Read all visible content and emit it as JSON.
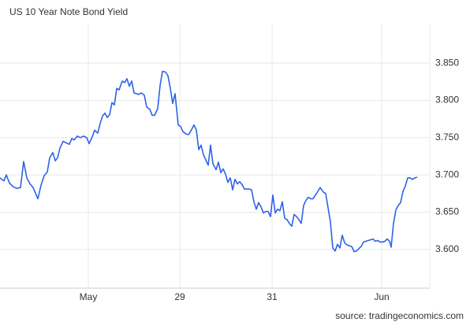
{
  "chart_data": {
    "type": "line",
    "title": "US 10 Year Note Bond Yield",
    "source": "source: tradingeconomics.com",
    "series": [
      {
        "name": "US 10 Year Note Bond Yield",
        "color": "#2f62e8",
        "x": [
          0,
          5,
          8,
          12,
          17,
          21,
          26,
          30,
          34,
          38,
          42,
          48,
          52,
          56,
          60,
          63,
          67,
          70,
          73,
          76,
          80,
          84,
          88,
          91,
          94,
          98,
          102,
          106,
          110,
          113,
          117,
          120,
          124,
          127,
          130,
          133,
          136,
          139,
          142,
          145,
          148,
          151,
          155,
          158,
          161,
          164,
          167,
          170,
          173,
          176,
          179,
          183,
          186,
          190,
          193,
          196,
          200,
          203,
          206,
          210,
          213,
          216,
          219,
          222,
          226,
          229,
          232,
          236,
          239,
          242,
          246,
          249,
          252,
          255,
          258,
          261,
          264,
          267,
          270,
          274,
          277,
          280,
          283,
          286,
          289,
          292,
          295,
          298,
          301,
          304,
          307,
          310,
          313,
          316,
          319,
          322,
          325,
          328,
          331,
          334,
          337,
          340,
          343,
          346,
          349,
          352,
          355,
          358,
          361,
          364,
          367,
          370,
          373,
          376,
          379,
          382,
          385,
          388,
          391,
          394,
          397,
          400,
          403,
          406,
          410,
          413,
          416,
          419,
          422,
          425,
          428,
          431,
          434,
          437,
          440,
          443,
          446,
          449,
          452,
          455,
          458,
          461,
          464,
          467,
          470,
          473,
          476,
          479,
          482,
          485,
          488,
          491,
          494,
          496,
          499,
          502,
          505,
          508,
          511,
          514,
          517,
          520,
          523,
          526,
          529
        ],
        "values": [
          3.696,
          3.692,
          3.7,
          3.689,
          3.684,
          3.682,
          3.683,
          3.718,
          3.696,
          3.688,
          3.683,
          3.668,
          3.686,
          3.699,
          3.704,
          3.723,
          3.73,
          3.719,
          3.723,
          3.736,
          3.745,
          3.743,
          3.741,
          3.749,
          3.747,
          3.752,
          3.75,
          3.752,
          3.75,
          3.742,
          3.751,
          3.76,
          3.756,
          3.769,
          3.779,
          3.783,
          3.777,
          3.781,
          3.797,
          3.794,
          3.816,
          3.814,
          3.826,
          3.824,
          3.829,
          3.819,
          3.826,
          3.81,
          3.809,
          3.808,
          3.81,
          3.807,
          3.791,
          3.788,
          3.78,
          3.78,
          3.789,
          3.82,
          3.839,
          3.838,
          3.833,
          3.816,
          3.796,
          3.809,
          3.767,
          3.765,
          3.758,
          3.755,
          3.754,
          3.759,
          3.767,
          3.76,
          3.734,
          3.74,
          3.727,
          3.72,
          3.713,
          3.74,
          3.715,
          3.707,
          3.717,
          3.703,
          3.708,
          3.701,
          3.69,
          3.696,
          3.68,
          3.694,
          3.688,
          3.691,
          3.687,
          3.681,
          3.681,
          3.681,
          3.68,
          3.664,
          3.654,
          3.663,
          3.657,
          3.649,
          3.651,
          3.651,
          3.644,
          3.673,
          3.649,
          3.654,
          3.652,
          3.664,
          3.642,
          3.64,
          3.635,
          3.631,
          3.647,
          3.644,
          3.64,
          3.635,
          3.659,
          3.666,
          3.67,
          3.668,
          3.668,
          3.673,
          3.678,
          3.683,
          3.677,
          3.675,
          3.656,
          3.637,
          3.602,
          3.598,
          3.607,
          3.602,
          3.619,
          3.609,
          3.606,
          3.605,
          3.604,
          3.597,
          3.598,
          3.601,
          3.604,
          3.61,
          3.611,
          3.612,
          3.613,
          3.614,
          3.611,
          3.612,
          3.61,
          3.61,
          3.611,
          3.614,
          3.611,
          3.603,
          3.635,
          3.653,
          3.659,
          3.663,
          3.678,
          3.685,
          3.696,
          3.696,
          3.694,
          3.696,
          3.697
        ]
      }
    ],
    "xlim": [
      0,
      545
    ],
    "xticks": [
      {
        "value": 112,
        "label": "May"
      },
      {
        "value": 228,
        "label": "29"
      },
      {
        "value": 345,
        "label": "31"
      },
      {
        "value": 484,
        "label": "Jun"
      }
    ],
    "ylim": [
      3.548,
      3.903
    ],
    "yticks": [
      {
        "value": 3.6,
        "label": "3.600"
      },
      {
        "value": 3.65,
        "label": "3.650"
      },
      {
        "value": 3.7,
        "label": "3.700"
      },
      {
        "value": 3.75,
        "label": "3.750"
      },
      {
        "value": 3.8,
        "label": "3.800"
      },
      {
        "value": 3.85,
        "label": "3.850"
      }
    ],
    "grid": true
  }
}
